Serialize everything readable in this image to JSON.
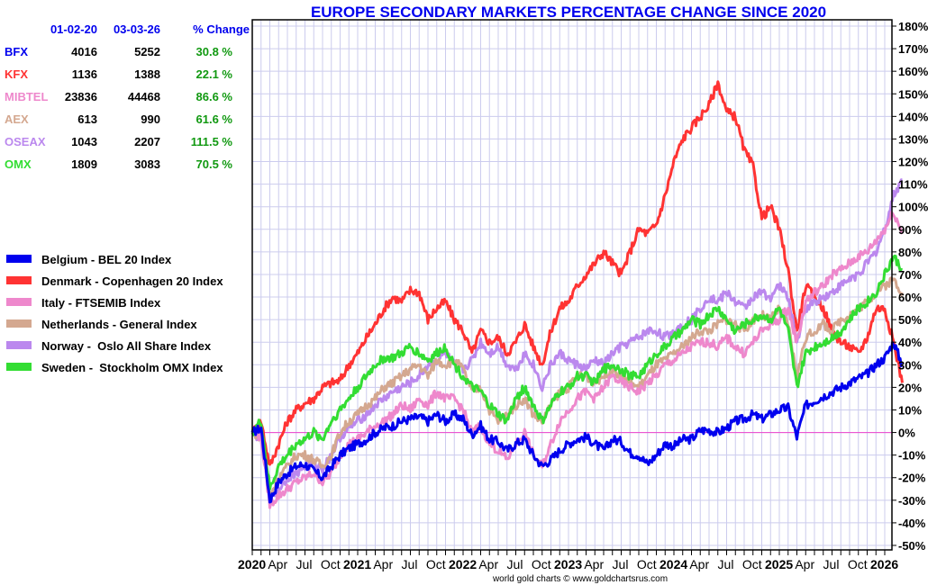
{
  "chart_data": {
    "type": "line",
    "title": "EUROPE SECONDARY MARKETS PERCENTAGE CHANGE SINCE 2020",
    "xlabel": "",
    "ylabel": "",
    "ylim": [
      -50,
      180
    ],
    "yticks": [
      180,
      170,
      160,
      150,
      140,
      130,
      120,
      110,
      100,
      90,
      80,
      70,
      60,
      50,
      40,
      30,
      20,
      10,
      0,
      -10,
      -20,
      -30,
      -40,
      -50
    ],
    "ytick_suffix": "%",
    "x_unit": "months since Jan 2020",
    "xlim": [
      0,
      74
    ],
    "xticks": [
      {
        "m": 0,
        "label": "2020",
        "year": true
      },
      {
        "m": 3,
        "label": "Apr",
        "year": false
      },
      {
        "m": 6,
        "label": "Jul",
        "year": false
      },
      {
        "m": 9,
        "label": "Oct",
        "year": false
      },
      {
        "m": 12,
        "label": "2021",
        "year": true
      },
      {
        "m": 15,
        "label": "Apr",
        "year": false
      },
      {
        "m": 18,
        "label": "Jul",
        "year": false
      },
      {
        "m": 21,
        "label": "Oct",
        "year": false
      },
      {
        "m": 24,
        "label": "2022",
        "year": true
      },
      {
        "m": 27,
        "label": "Apr",
        "year": false
      },
      {
        "m": 30,
        "label": "Jul",
        "year": false
      },
      {
        "m": 33,
        "label": "Oct",
        "year": false
      },
      {
        "m": 36,
        "label": "2023",
        "year": true
      },
      {
        "m": 39,
        "label": "Apr",
        "year": false
      },
      {
        "m": 42,
        "label": "Jul",
        "year": false
      },
      {
        "m": 45,
        "label": "Oct",
        "year": false
      },
      {
        "m": 48,
        "label": "2024",
        "year": true
      },
      {
        "m": 51,
        "label": "Apr",
        "year": false
      },
      {
        "m": 54,
        "label": "Jul",
        "year": false
      },
      {
        "m": 57,
        "label": "Oct",
        "year": false
      },
      {
        "m": 60,
        "label": "2025",
        "year": true
      },
      {
        "m": 63,
        "label": "Apr",
        "year": false
      },
      {
        "m": 66,
        "label": "Jul",
        "year": false
      },
      {
        "m": 69,
        "label": "Oct",
        "year": false
      },
      {
        "m": 72,
        "label": "2026",
        "year": true
      }
    ],
    "grid": true,
    "zero_line": true,
    "legend_placement": "left",
    "credit": "world gold charts © www.goldchartsrus.com",
    "series": [
      {
        "name": "Belgium - BEL 20 Index",
        "color": "#0000ee",
        "values": [
          0,
          2,
          -30,
          -22,
          -18,
          -15,
          -14,
          -17,
          -20,
          -15,
          -10,
          -7,
          -5,
          -3,
          0,
          2,
          3,
          5,
          6,
          7,
          5,
          8,
          5,
          8,
          6,
          -1,
          3,
          -3,
          -4,
          -8,
          -5,
          -3,
          -10,
          -15,
          -12,
          -8,
          -5,
          -3,
          -2,
          -5,
          -8,
          -3,
          -4,
          -9,
          -10,
          -14,
          -10,
          -5,
          -6,
          -3,
          -3,
          1,
          1,
          0,
          2,
          5,
          6,
          8,
          6,
          8,
          10,
          11,
          -2,
          12,
          14,
          16,
          18,
          20,
          22,
          24,
          26,
          30,
          33,
          40,
          30
        ]
      },
      {
        "name": "Denmark - Copenhagen 20 Index",
        "color": "#ff3333",
        "values": [
          0,
          5,
          -15,
          -5,
          5,
          10,
          13,
          15,
          20,
          22,
          23,
          30,
          35,
          42,
          48,
          55,
          60,
          58,
          63,
          62,
          50,
          55,
          58,
          50,
          45,
          35,
          45,
          40,
          42,
          35,
          40,
          48,
          38,
          30,
          45,
          55,
          58,
          65,
          70,
          75,
          80,
          75,
          70,
          80,
          90,
          88,
          92,
          105,
          120,
          130,
          135,
          140,
          145,
          155,
          142,
          140,
          125,
          118,
          95,
          100,
          90,
          72,
          45,
          65,
          60,
          55,
          45,
          40,
          38,
          35,
          42,
          55,
          55,
          40,
          22
        ]
      },
      {
        "name": "Italy - FTSEMIB Index",
        "color": "#ee88cc",
        "values": [
          0,
          -2,
          -32,
          -28,
          -25,
          -22,
          -20,
          -18,
          -22,
          -18,
          -10,
          -5,
          -3,
          0,
          3,
          5,
          8,
          12,
          10,
          15,
          12,
          18,
          15,
          15,
          10,
          0,
          3,
          -5,
          -8,
          -12,
          -5,
          0,
          -10,
          -15,
          -5,
          5,
          10,
          15,
          18,
          15,
          20,
          25,
          22,
          20,
          18,
          22,
          25,
          30,
          32,
          35,
          38,
          40,
          40,
          38,
          42,
          38,
          35,
          40,
          45,
          48,
          50,
          55,
          40,
          58,
          62,
          65,
          70,
          72,
          75,
          78,
          80,
          85,
          90,
          98,
          88
        ]
      },
      {
        "name": "Netherlands - General Index",
        "color": "#d4a890",
        "values": [
          0,
          -2,
          -28,
          -20,
          -15,
          -10,
          -10,
          -12,
          -15,
          -10,
          0,
          5,
          8,
          12,
          15,
          20,
          22,
          25,
          28,
          30,
          25,
          32,
          30,
          32,
          28,
          18,
          20,
          10,
          5,
          8,
          12,
          15,
          8,
          5,
          12,
          18,
          20,
          25,
          25,
          22,
          25,
          28,
          25,
          22,
          20,
          25,
          30,
          32,
          35,
          38,
          42,
          45,
          45,
          48,
          50,
          48,
          45,
          50,
          52,
          50,
          55,
          48,
          25,
          42,
          45,
          48,
          45,
          50,
          52,
          55,
          58,
          62,
          65,
          68,
          62
        ]
      },
      {
        "name": "Norway -  Oslo All Share Index",
        "color": "#bb88ee",
        "values": [
          0,
          -3,
          -30,
          -25,
          -20,
          -18,
          -15,
          -14,
          -16,
          -10,
          -2,
          2,
          5,
          8,
          12,
          15,
          18,
          20,
          22,
          25,
          30,
          32,
          35,
          30,
          28,
          32,
          40,
          35,
          38,
          30,
          28,
          35,
          30,
          20,
          30,
          35,
          32,
          30,
          28,
          32,
          30,
          35,
          38,
          40,
          42,
          45,
          45,
          42,
          45,
          48,
          50,
          55,
          60,
          58,
          62,
          58,
          55,
          60,
          62,
          60,
          65,
          60,
          40,
          55,
          58,
          60,
          62,
          65,
          68,
          70,
          75,
          80,
          90,
          105,
          112
        ]
      },
      {
        "name": "Sweden -  Stockholm OMX Index",
        "color": "#33dd33",
        "values": [
          0,
          5,
          -25,
          -15,
          -10,
          -5,
          -3,
          0,
          -3,
          5,
          10,
          15,
          20,
          25,
          30,
          33,
          33,
          35,
          38,
          35,
          32,
          35,
          38,
          30,
          25,
          20,
          18,
          12,
          8,
          5,
          15,
          20,
          12,
          5,
          12,
          18,
          20,
          25,
          25,
          22,
          28,
          30,
          28,
          25,
          25,
          30,
          35,
          38,
          42,
          45,
          50,
          48,
          52,
          55,
          50,
          45,
          48,
          50,
          52,
          50,
          55,
          45,
          20,
          35,
          38,
          40,
          42,
          45,
          50,
          55,
          58,
          62,
          70,
          78,
          72
        ]
      }
    ]
  },
  "summary_table": {
    "headers": [
      "",
      "01-02-20",
      "03-03-26",
      "% Change"
    ],
    "rows": [
      {
        "code": "BFX",
        "color": "#0000ee",
        "start": "4016",
        "end": "5252",
        "change": "30.8 %"
      },
      {
        "code": "KFX",
        "color": "#ff3333",
        "start": "1136",
        "end": "1388",
        "change": "22.1 %"
      },
      {
        "code": "MIBTEL",
        "color": "#ee88cc",
        "start": "23836",
        "end": "44468",
        "change": "86.6 %"
      },
      {
        "code": "AEX",
        "color": "#d4a890",
        "start": "613",
        "end": "990",
        "change": "61.6 %"
      },
      {
        "code": "OSEAX",
        "color": "#bb88ee",
        "start": "1043",
        "end": "2207",
        "change": "111.5 %"
      },
      {
        "code": "OMX",
        "color": "#33dd33",
        "start": "1809",
        "end": "3083",
        "change": "70.5 %"
      }
    ]
  },
  "colors": {
    "title": "#0000ee",
    "grid": "#ccccee",
    "zero_line": "#ee44cc",
    "change_positive": "#119911"
  }
}
